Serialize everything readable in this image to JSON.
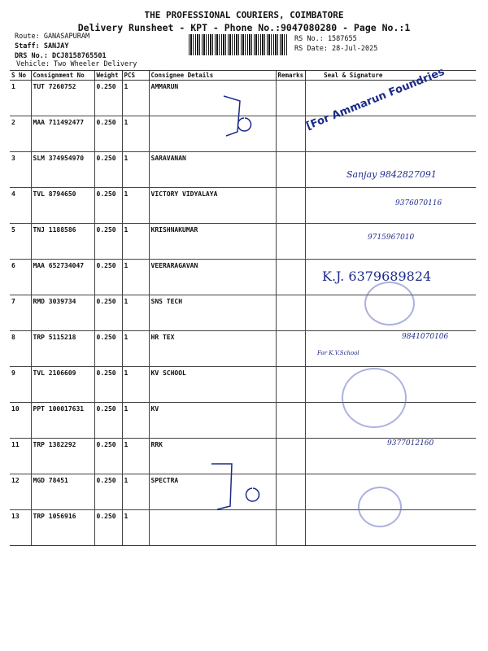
{
  "header": {
    "company": "THE PROFESSIONAL COURIERS, COIMBATORE",
    "subtitle": "Delivery Runsheet - KPT - Phone No.:9047080280 - Page No.:1",
    "route": "Route: GANASAPURAM",
    "staff": "Staff: SANJAY",
    "drs": "DRS No.: DCJ8158765501",
    "vehicle": "Vehicle: Two Wheeler Delivery",
    "rs_no": "RS No.: 1587655",
    "rs_date": "RS Date: 28-Jul-2025"
  },
  "table": {
    "columns": [
      "S No",
      "Consignment No",
      "Weight",
      "PCS",
      "Consignee Details",
      "Remarks",
      "Seal & Signature"
    ],
    "rows": [
      {
        "sno": "1",
        "cno": "TUT 7260752",
        "weight": "0.250",
        "pcs": "1",
        "consignee": "AMMARUN"
      },
      {
        "sno": "2",
        "cno": "MAA 711492477",
        "weight": "0.250",
        "pcs": "1",
        "consignee": ""
      },
      {
        "sno": "3",
        "cno": "SLM 374954970",
        "weight": "0.250",
        "pcs": "1",
        "consignee": "SARAVANAN"
      },
      {
        "sno": "4",
        "cno": "TVL 8794650",
        "weight": "0.250",
        "pcs": "1",
        "consignee": "VICTORY VIDYALAYA"
      },
      {
        "sno": "5",
        "cno": "TNJ 1188586",
        "weight": "0.250",
        "pcs": "1",
        "consignee": "KRISHNAKUMAR"
      },
      {
        "sno": "6",
        "cno": "MAA 652734047",
        "weight": "0.250",
        "pcs": "1",
        "consignee": "VEERARAGAVAN"
      },
      {
        "sno": "7",
        "cno": "RMD 3039734",
        "weight": "0.250",
        "pcs": "1",
        "consignee": "SNS TECH"
      },
      {
        "sno": "8",
        "cno": "TRP 5115218",
        "weight": "0.250",
        "pcs": "1",
        "consignee": "HR TEX"
      },
      {
        "sno": "9",
        "cno": "TVL 2106609",
        "weight": "0.250",
        "pcs": "1",
        "consignee": "KV SCHOOL"
      },
      {
        "sno": "10",
        "cno": "PPT 100017631",
        "weight": "0.250",
        "pcs": "1",
        "consignee": "KV"
      },
      {
        "sno": "11",
        "cno": "TRP 1382292",
        "weight": "0.250",
        "pcs": "1",
        "consignee": "RRK"
      },
      {
        "sno": "12",
        "cno": "MGD 78451",
        "weight": "0.250",
        "pcs": "1",
        "consignee": "SPECTRA"
      },
      {
        "sno": "13",
        "cno": "TRP 1056916",
        "weight": "0.250",
        "pcs": "1",
        "consignee": ""
      }
    ]
  },
  "handwriting": {
    "stamp1": "[For Ammarun Foundries",
    "sig3": "Sanjay 9842827091",
    "sig4": "9376070116",
    "sig5": "9715967010",
    "sig6": "K.J. 6379689824",
    "sig8": "9841070106",
    "sig9": "For K.V.School",
    "sig11": "9377012160"
  },
  "colors": {
    "ink": "#1c2a8a"
  }
}
